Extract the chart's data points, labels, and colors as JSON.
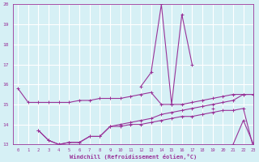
{
  "xlabel": "Windchill (Refroidissement éolien,°C)",
  "bg_color": "#d6f0f5",
  "grid_color": "#ffffff",
  "line_color": "#993399",
  "xlim": [
    -0.5,
    23
  ],
  "ylim": [
    13,
    20
  ],
  "yticks": [
    13,
    14,
    15,
    16,
    17,
    18,
    19,
    20
  ],
  "xticks": [
    0,
    1,
    2,
    3,
    4,
    5,
    6,
    7,
    8,
    9,
    10,
    11,
    12,
    13,
    14,
    15,
    16,
    17,
    18,
    19,
    20,
    21,
    22,
    23
  ],
  "series": [
    {
      "x": [
        0,
        1,
        2,
        3,
        4,
        5,
        6,
        7,
        8,
        9,
        10,
        11,
        12,
        13,
        14,
        15,
        16,
        17,
        18,
        19,
        20,
        21,
        22,
        23
      ],
      "y": [
        15.8,
        15.1,
        15.1,
        15.1,
        15.1,
        15.1,
        15.2,
        15.2,
        15.3,
        15.3,
        15.3,
        15.4,
        15.5,
        15.6,
        15.0,
        15.0,
        15.0,
        15.1,
        15.2,
        15.3,
        15.4,
        15.5,
        15.5,
        15.5
      ]
    },
    {
      "x": [
        0,
        1,
        2,
        3,
        4,
        5,
        6,
        7,
        8,
        9,
        10,
        11,
        12,
        13,
        14,
        15,
        16,
        17,
        18,
        19,
        20,
        21,
        22,
        23
      ],
      "y": [
        null,
        null,
        13.7,
        13.2,
        13.0,
        13.1,
        13.1,
        13.4,
        13.4,
        13.9,
        14.0,
        14.1,
        14.2,
        14.3,
        14.5,
        14.6,
        14.7,
        14.8,
        14.9,
        15.0,
        15.1,
        15.2,
        15.5,
        15.5
      ]
    },
    {
      "x": [
        0,
        1,
        2,
        3,
        4,
        5,
        6,
        7,
        8,
        9,
        10,
        11,
        12,
        13,
        14,
        15,
        16,
        17,
        18,
        19,
        20,
        21,
        22,
        23
      ],
      "y": [
        null,
        null,
        13.7,
        13.2,
        13.0,
        13.1,
        13.1,
        13.4,
        13.4,
        13.9,
        13.9,
        14.0,
        14.0,
        14.1,
        14.2,
        14.3,
        14.4,
        14.4,
        14.5,
        14.6,
        14.7,
        14.7,
        14.8,
        12.8
      ]
    },
    {
      "x": [
        11,
        12,
        13,
        14,
        15,
        16,
        17,
        18,
        19,
        20,
        21,
        22,
        23
      ],
      "y": [
        null,
        15.9,
        16.6,
        20.0,
        15.0,
        19.5,
        17.0,
        null,
        14.8,
        null,
        13.0,
        14.2,
        13.0
      ]
    }
  ]
}
